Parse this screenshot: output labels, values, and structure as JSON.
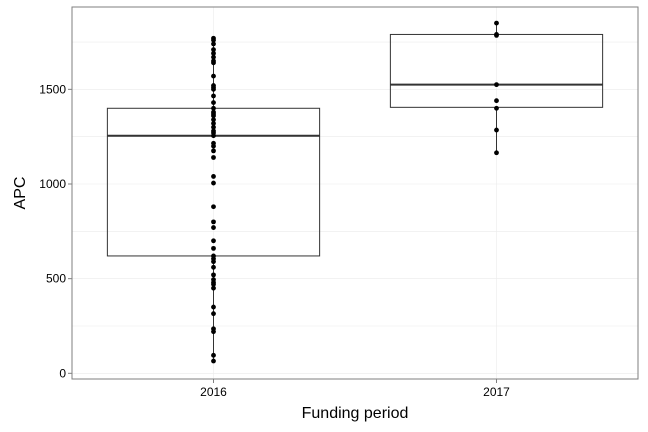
{
  "chart_data": {
    "type": "boxplot",
    "xlabel": "Funding period",
    "ylabel": "APC",
    "ylim": [
      -30,
      1935
    ],
    "y_ticks": [
      0,
      500,
      1000,
      1500
    ],
    "y_tick_labels": [
      "0",
      "500",
      "1000",
      "1500"
    ],
    "categories": [
      "2016",
      "2017"
    ],
    "boxes": [
      {
        "category": "2016",
        "q1": 620,
        "median": 1255,
        "q3": 1400,
        "whisker_low": 65,
        "whisker_high": 1770
      },
      {
        "category": "2017",
        "q1": 1405,
        "median": 1525,
        "q3": 1790,
        "whisker_low": 1165,
        "whisker_high": 1850
      }
    ],
    "points": [
      {
        "category": "2016",
        "values": [
          65,
          95,
          220,
          235,
          315,
          350,
          450,
          470,
          480,
          495,
          520,
          560,
          590,
          605,
          620,
          660,
          700,
          770,
          800,
          880,
          1005,
          1040,
          1140,
          1175,
          1200,
          1215,
          1255,
          1270,
          1280,
          1300,
          1320,
          1340,
          1360,
          1370,
          1380,
          1400,
          1430,
          1465,
          1500,
          1510,
          1520,
          1570,
          1640,
          1650,
          1670,
          1690,
          1710,
          1740,
          1760,
          1770
        ]
      },
      {
        "category": "2017",
        "values": [
          1165,
          1285,
          1400,
          1440,
          1525,
          1785,
          1790,
          1850
        ]
      }
    ],
    "grid": true,
    "legend": "none"
  }
}
